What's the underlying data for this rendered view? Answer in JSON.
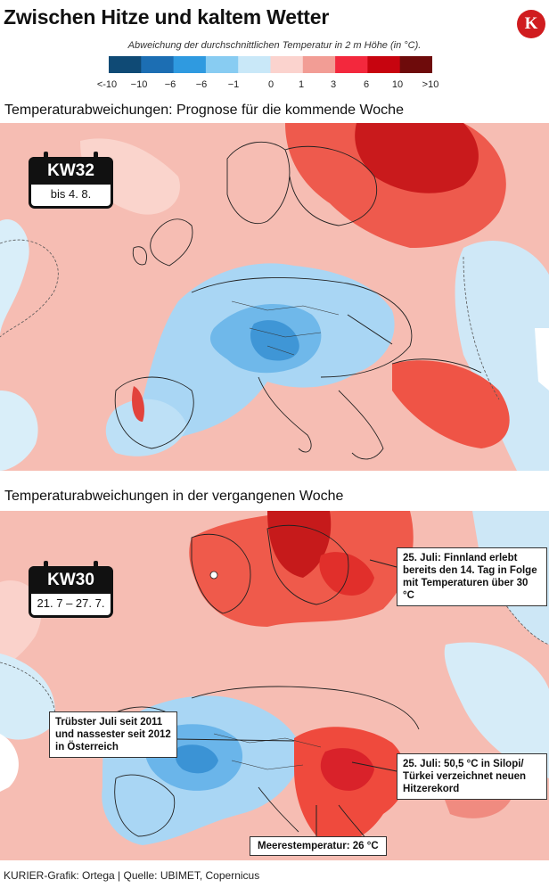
{
  "header": {
    "title": "Zwischen Hitze und kaltem Wetter",
    "logo_letter": "K"
  },
  "legend": {
    "title": "Abweichung der durchschnittlichen Temperatur in 2 m Höhe (in °C).",
    "colors": [
      "#0f4a75",
      "#1c6eb3",
      "#2f9ae0",
      "#88ccf2",
      "#c9e8f8",
      "#fbd3ce",
      "#f29d95",
      "#f3283d",
      "#c7040f",
      "#6e0b0b"
    ],
    "ticks": [
      "<-10",
      "−10",
      "−6",
      "−6",
      "−1",
      "0",
      "1",
      "3",
      "6",
      "10",
      ">10"
    ]
  },
  "section1": {
    "title": "Temperaturabweichungen: Prognose für die kommende Woche",
    "week": "KW32",
    "period": "bis 4. 8."
  },
  "section2": {
    "title": "Temperaturabweichungen in der vergangenen Woche",
    "week": "KW30",
    "period": "21. 7 – 27. 7.",
    "callouts": {
      "finland": "25. Juli: Finnland erlebt bereits den 14. Tag in Folge mit Temperaturen über 30 °C",
      "austria": "Trübster Juli seit 2011 und nassester seit 2012 in Österreich",
      "turkey": "25. Juli: 50,5 °C in Silopi/ Türkei verzeichnet neuen Hitzerekord",
      "sea": "Meerestemperatur: 26 °C"
    }
  },
  "footer": {
    "credit": "KURIER-Grafik: Ortega | Quelle: UBIMET, Copernicus"
  }
}
